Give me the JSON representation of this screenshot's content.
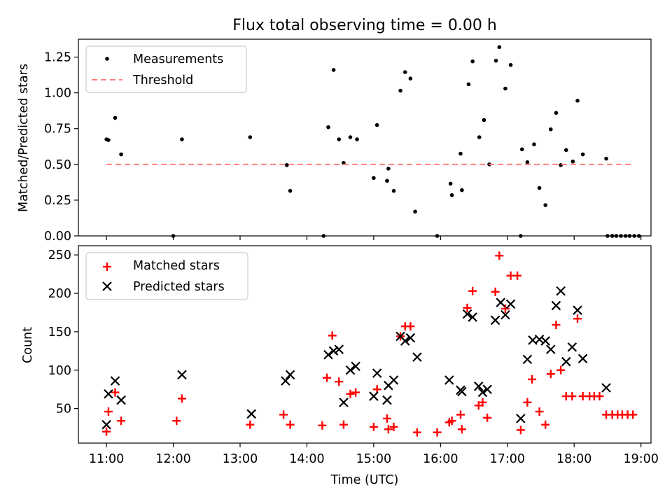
{
  "figure": {
    "title": "Flux total observing time = 0.00 h"
  },
  "chart_data": [
    {
      "type": "scatter",
      "title": "Flux total observing time = 0.00 h",
      "ylabel": "Matched/Predicted stars",
      "xlabel": "",
      "xlim": [
        10.58,
        19.15
      ],
      "ylim": [
        0,
        1.375
      ],
      "yticks": [
        0.0,
        0.25,
        0.5,
        0.75,
        1.0,
        1.25
      ],
      "ytick_labels": [
        "0.00",
        "0.25",
        "0.50",
        "0.75",
        "1.00",
        "1.25"
      ],
      "grid": false,
      "legend_position": "top-left",
      "series": [
        {
          "name": "Measurements",
          "kind": "dot",
          "color": "#000000",
          "x": [
            11.0,
            11.03,
            11.13,
            11.22,
            12.0,
            12.13,
            13.15,
            13.7,
            13.75,
            14.25,
            14.32,
            14.4,
            14.48,
            14.55,
            14.65,
            14.75,
            15.0,
            15.05,
            15.2,
            15.22,
            15.3,
            15.4,
            15.47,
            15.55,
            15.62,
            15.95,
            16.15,
            16.17,
            16.3,
            16.32,
            16.42,
            16.48,
            16.58,
            16.65,
            16.73,
            16.83,
            16.88,
            16.97,
            17.05,
            17.2,
            17.22,
            17.3,
            17.4,
            17.48,
            17.57,
            17.65,
            17.73,
            17.8,
            17.88,
            17.98,
            18.05,
            18.13,
            18.48,
            18.5,
            18.57,
            18.63,
            18.7,
            18.77,
            18.83,
            18.9,
            18.97
          ],
          "y": [
            0.675,
            0.67,
            0.825,
            0.57,
            0.0,
            0.675,
            0.69,
            0.495,
            0.315,
            0.0,
            0.76,
            1.16,
            0.675,
            0.51,
            0.69,
            0.675,
            0.405,
            0.775,
            0.385,
            0.47,
            0.315,
            1.015,
            1.145,
            1.1,
            0.17,
            0.0,
            0.365,
            0.285,
            0.575,
            0.32,
            1.06,
            1.22,
            0.69,
            0.81,
            0.5,
            1.225,
            1.32,
            1.03,
            1.195,
            0.0,
            0.605,
            0.515,
            0.64,
            0.335,
            0.215,
            0.745,
            0.86,
            0.495,
            0.6,
            0.52,
            0.945,
            0.57,
            0.54,
            0.0,
            0.0,
            0.0,
            0.0,
            0.0,
            0.0,
            0.0,
            0.0
          ]
        },
        {
          "name": "Threshold",
          "kind": "dashed-line",
          "color": "#ff8080",
          "x": [
            11.0,
            18.85
          ],
          "y": [
            0.5,
            0.5
          ]
        }
      ]
    },
    {
      "type": "scatter",
      "title": "",
      "ylabel": "Count",
      "xlabel": "Time (UTC)",
      "xlim": [
        10.58,
        19.15
      ],
      "ylim": [
        5,
        262
      ],
      "yticks": [
        50,
        100,
        150,
        200,
        250
      ],
      "ytick_labels": [
        "50",
        "100",
        "150",
        "200",
        "250"
      ],
      "xticks": [
        11,
        12,
        13,
        14,
        15,
        16,
        17,
        18,
        19
      ],
      "xtick_labels": [
        "11:00",
        "12:00",
        "13:00",
        "14:00",
        "15:00",
        "16:00",
        "17:00",
        "18:00",
        "19:00"
      ],
      "grid": false,
      "legend_position": "top-left",
      "series": [
        {
          "name": "Matched stars",
          "kind": "plus",
          "color": "#ff0000",
          "x": [
            11.0,
            11.03,
            11.13,
            11.22,
            12.05,
            12.13,
            13.15,
            13.65,
            13.75,
            14.23,
            14.3,
            14.38,
            14.48,
            14.55,
            14.65,
            14.73,
            15.0,
            15.05,
            15.2,
            15.22,
            15.3,
            15.4,
            15.47,
            15.55,
            15.65,
            15.95,
            16.13,
            16.17,
            16.3,
            16.32,
            16.4,
            16.48,
            16.57,
            16.63,
            16.7,
            16.82,
            16.88,
            16.97,
            17.05,
            17.15,
            17.2,
            17.3,
            17.37,
            17.48,
            17.57,
            17.65,
            17.73,
            17.8,
            17.88,
            17.97,
            18.05,
            18.13,
            18.23,
            18.3,
            18.38,
            18.48,
            18.57,
            18.65,
            18.72,
            18.8,
            18.88
          ],
          "y": [
            20,
            46,
            71,
            34,
            34,
            63,
            29,
            42,
            29,
            28,
            90,
            145,
            85,
            29,
            69,
            71,
            26,
            75,
            37,
            23,
            26,
            144,
            157,
            157,
            19,
            19,
            32,
            34,
            42,
            23,
            181,
            203,
            54,
            58,
            38,
            202,
            249,
            180,
            223,
            223,
            22,
            58,
            88,
            46,
            29,
            95,
            159,
            100,
            66,
            66,
            167,
            66,
            66,
            66,
            66,
            42,
            42,
            42,
            42,
            42,
            42
          ]
        },
        {
          "name": "Predicted stars",
          "kind": "x",
          "color": "#000000",
          "x": [
            11.0,
            11.03,
            11.13,
            11.22,
            12.13,
            13.17,
            13.68,
            13.75,
            14.32,
            14.4,
            14.48,
            14.55,
            14.65,
            14.73,
            15.0,
            15.05,
            15.2,
            15.22,
            15.3,
            15.4,
            15.47,
            15.55,
            15.65,
            16.13,
            16.3,
            16.32,
            16.4,
            16.48,
            16.57,
            16.63,
            16.7,
            16.82,
            16.9,
            16.97,
            17.05,
            17.2,
            17.3,
            17.38,
            17.48,
            17.57,
            17.65,
            17.73,
            17.8,
            17.88,
            17.97,
            18.05,
            18.13,
            18.48
          ],
          "y": [
            29,
            69,
            86,
            61,
            94,
            43,
            86,
            94,
            120,
            125,
            127,
            58,
            100,
            105,
            66,
            96,
            61,
            80,
            87,
            144,
            138,
            142,
            117,
            87,
            74,
            72,
            173,
            169,
            79,
            71,
            75,
            165,
            188,
            172,
            186,
            37,
            114,
            139,
            140,
            138,
            127,
            184,
            203,
            111,
            130,
            178,
            115,
            77
          ]
        }
      ]
    }
  ]
}
